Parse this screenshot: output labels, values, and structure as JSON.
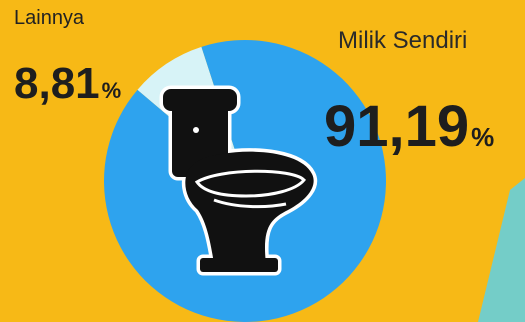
{
  "colors": {
    "background": "#f7b916",
    "milik_sendiri": "#2ea3ee",
    "lainnya": "#d7f3f7",
    "teal_accent": "#74cdc8",
    "icon": "#111111"
  },
  "icon": "toilet-icon",
  "chart_data": {
    "type": "pie",
    "slices": [
      {
        "label": "Milik Sendiri",
        "value_text": "91,19",
        "unit": "%",
        "value": 91.19,
        "color": "#2ea3ee"
      },
      {
        "label": "Lainnya",
        "value_text": "8,81",
        "unit": "%",
        "value": 8.81,
        "color": "#d7f3f7"
      }
    ]
  }
}
